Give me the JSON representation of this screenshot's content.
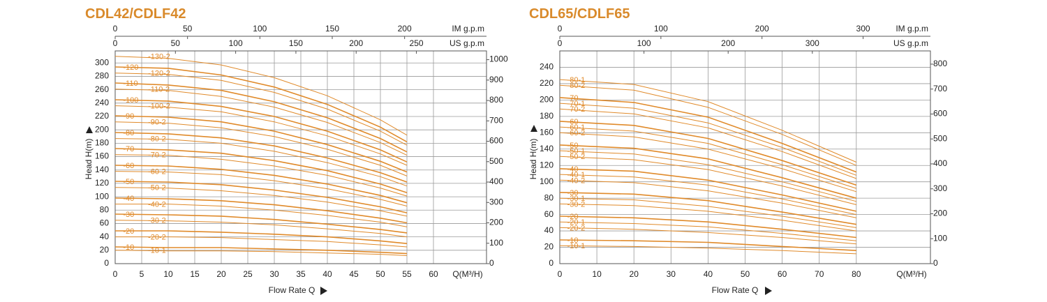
{
  "chart_data": [
    {
      "type": "line",
      "title": "CDL42/CDLF42",
      "xlabel": "Flow Rate Q",
      "ylabel": "Head H(m)",
      "x_unit": "Q(M³/H)",
      "color": "#e08a2a",
      "grid": true,
      "x": [
        0,
        10,
        20,
        30,
        40,
        50,
        55
      ],
      "xlim": [
        0,
        70
      ],
      "xticks": [
        0,
        5,
        10,
        15,
        20,
        25,
        30,
        35,
        40,
        45,
        50,
        55,
        60
      ],
      "ylim": [
        0,
        318
      ],
      "yticks": [
        0,
        20,
        40,
        60,
        80,
        100,
        120,
        140,
        160,
        180,
        200,
        220,
        240,
        260,
        280,
        300
      ],
      "y2lim": [
        0,
        1043
      ],
      "y2ticks": [
        0,
        100,
        200,
        300,
        400,
        500,
        600,
        700,
        800,
        900,
        1000
      ],
      "top_axes": [
        {
          "label": "IM g.p.m",
          "xlim": [
            0,
            256.6
          ],
          "xticks": [
            0,
            50,
            100,
            150,
            200
          ]
        },
        {
          "label": "US g.p.m",
          "xlim": [
            0,
            308.2
          ],
          "xticks": [
            0,
            50,
            100,
            150,
            200,
            250
          ]
        }
      ],
      "series": [
        {
          "name": "-130-2",
          "values": [
            310,
            307,
            297,
            278,
            251,
            215,
            192
          ]
        },
        {
          "name": "-120",
          "values": [
            294,
            292,
            282,
            264,
            238,
            204,
            182
          ]
        },
        {
          "name": "-120-2",
          "values": [
            285,
            283,
            274,
            256,
            231,
            198,
            177
          ]
        },
        {
          "name": "-110",
          "values": [
            270,
            267,
            259,
            242,
            218,
            187,
            167
          ]
        },
        {
          "name": "-110-2",
          "values": [
            261,
            259,
            250,
            234,
            211,
            181,
            162
          ]
        },
        {
          "name": "-100",
          "values": [
            245,
            243,
            235,
            220,
            198,
            170,
            152
          ]
        },
        {
          "name": "-100-2",
          "values": [
            236,
            234,
            227,
            212,
            191,
            164,
            147
          ]
        },
        {
          "name": "-90",
          "values": [
            221,
            219,
            212,
            198,
            178,
            153,
            137
          ]
        },
        {
          "name": "-90-2",
          "values": [
            212,
            210,
            203,
            190,
            171,
            147,
            131
          ]
        },
        {
          "name": "-80",
          "values": [
            196,
            194,
            188,
            176,
            158,
            136,
            122
          ]
        },
        {
          "name": "-80-2",
          "values": [
            187,
            186,
            180,
            168,
            151,
            130,
            116
          ]
        },
        {
          "name": "-70",
          "values": [
            172,
            170,
            165,
            154,
            139,
            119,
            106
          ]
        },
        {
          "name": "-70-2",
          "values": [
            163,
            162,
            156,
            146,
            132,
            113,
            101
          ]
        },
        {
          "name": "-60",
          "values": [
            147,
            146,
            141,
            132,
            119,
            102,
            91
          ]
        },
        {
          "name": "-60-2",
          "values": [
            138,
            137,
            133,
            124,
            112,
            96,
            86
          ]
        },
        {
          "name": "-50",
          "values": [
            123,
            122,
            118,
            110,
            99,
            85,
            76
          ]
        },
        {
          "name": "-50-2",
          "values": [
            114,
            113,
            109,
            102,
            92,
            79,
            71
          ]
        },
        {
          "name": "-40",
          "values": [
            98,
            97,
            94,
            88,
            79,
            68,
            61
          ]
        },
        {
          "name": "-40-2",
          "values": [
            89,
            89,
            86,
            80,
            72,
            62,
            55
          ]
        },
        {
          "name": "-30",
          "values": [
            74,
            73,
            71,
            66,
            59,
            51,
            46
          ]
        },
        {
          "name": "-30-2",
          "values": [
            65,
            64,
            62,
            58,
            52,
            45,
            40
          ]
        },
        {
          "name": "-20",
          "values": [
            49,
            49,
            47,
            44,
            40,
            34,
            30
          ]
        },
        {
          "name": "-20-2",
          "values": [
            40,
            40,
            39,
            36,
            33,
            28,
            25
          ]
        },
        {
          "name": "-10",
          "values": [
            25,
            24,
            24,
            22,
            20,
            17,
            15
          ]
        },
        {
          "name": "-10-1",
          "values": [
            20,
            19,
            19,
            18,
            16,
            14,
            12
          ]
        }
      ]
    },
    {
      "type": "line",
      "title": "CDL65/CDLF65",
      "xlabel": "Flow Rate Q",
      "ylabel": "Head H(m)",
      "x_unit": "Q(M³/H)",
      "color": "#e08a2a",
      "grid": true,
      "x": [
        0,
        20,
        40,
        60,
        80
      ],
      "xlim": [
        0,
        100
      ],
      "xticks": [
        0,
        10,
        20,
        30,
        40,
        50,
        60,
        70,
        80
      ],
      "ylim": [
        0,
        260
      ],
      "yticks": [
        0,
        20,
        40,
        60,
        80,
        100,
        120,
        140,
        160,
        180,
        200,
        220,
        240
      ],
      "y2lim": [
        0,
        853
      ],
      "y2ticks": [
        0,
        100,
        200,
        300,
        400,
        500,
        600,
        700,
        800
      ],
      "top_axes": [
        {
          "label": "IM g.p.m",
          "xlim": [
            0,
            366.6
          ],
          "xticks": [
            0,
            100,
            200,
            300
          ]
        },
        {
          "label": "US g.p.m",
          "xlim": [
            0,
            440.3
          ],
          "xticks": [
            0,
            100,
            200,
            300
          ]
        }
      ],
      "series": [
        {
          "name": "-80-1",
          "values": [
            225,
            219,
            198,
            163,
            124
          ]
        },
        {
          "name": "-80-2",
          "values": [
            218,
            212,
            191,
            158,
            120
          ]
        },
        {
          "name": "-70",
          "values": [
            203,
            197,
            179,
            147,
            112
          ]
        },
        {
          "name": "-70-1",
          "values": [
            196,
            190,
            172,
            142,
            108
          ]
        },
        {
          "name": "-70-2",
          "values": [
            189,
            183,
            166,
            137,
            104
          ]
        },
        {
          "name": "-60",
          "values": [
            174,
            169,
            153,
            126,
            96
          ]
        },
        {
          "name": "-60-1",
          "values": [
            167,
            162,
            147,
            121,
            92
          ]
        },
        {
          "name": "-60-2",
          "values": [
            160,
            155,
            140,
            116,
            88
          ]
        },
        {
          "name": "-50",
          "values": [
            145,
            141,
            128,
            105,
            80
          ]
        },
        {
          "name": "-50-1",
          "values": [
            138,
            134,
            121,
            100,
            76
          ]
        },
        {
          "name": "-50-2",
          "values": [
            131,
            127,
            115,
            95,
            72
          ]
        },
        {
          "name": "-40",
          "values": [
            116,
            113,
            102,
            84,
            64
          ]
        },
        {
          "name": "-40-1",
          "values": [
            109,
            106,
            96,
            79,
            60
          ]
        },
        {
          "name": "-40-2",
          "values": [
            102,
            99,
            89,
            74,
            56
          ]
        },
        {
          "name": "-30",
          "values": [
            87,
            85,
            77,
            63,
            48
          ]
        },
        {
          "name": "-30-1",
          "values": [
            80,
            78,
            70,
            58,
            44
          ]
        },
        {
          "name": "-30-2",
          "values": [
            73,
            71,
            64,
            53,
            40
          ]
        },
        {
          "name": "-20",
          "values": [
            58,
            56,
            51,
            42,
            32
          ]
        },
        {
          "name": "-20-1",
          "values": [
            51,
            49,
            45,
            37,
            28
          ]
        },
        {
          "name": "-20-2",
          "values": [
            44,
            42,
            38,
            32,
            24
          ]
        },
        {
          "name": "-10",
          "values": [
            29,
            28,
            26,
            21,
            16
          ]
        },
        {
          "name": "-10-1",
          "values": [
            22,
            21,
            19,
            16,
            12
          ]
        }
      ]
    }
  ]
}
